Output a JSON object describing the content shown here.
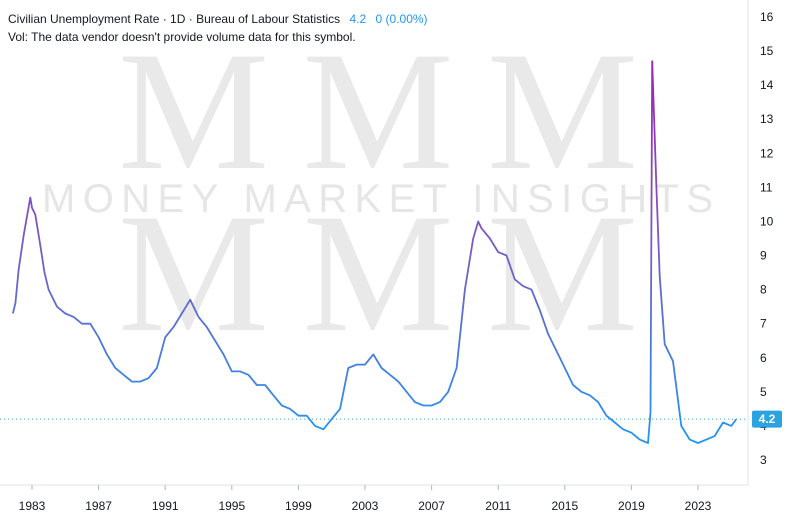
{
  "header": {
    "title": "Civilian Unemployment Rate · 1D · Bureau of Labour Statistics",
    "last_value": "4.2",
    "change": "0 (0.00%)",
    "volume_note": "Vol: The data vendor doesn't provide volume data for this symbol."
  },
  "watermark": {
    "letters": "MMM",
    "text": "MONEY MARKET INSIGHTS"
  },
  "price_label": "4.2",
  "colors": {
    "line_start": "#2196f3",
    "line_mid": "#7e57c2",
    "line_peak": "#9c27b0",
    "label_bg": "#2ba3e0",
    "dotted": "#2ba3e0"
  },
  "chart_data": {
    "type": "line",
    "title": "Civilian Unemployment Rate · 1D · Bureau of Labour Statistics",
    "xlabel": "",
    "ylabel": "",
    "xlim": [
      1981.8,
      2025.6
    ],
    "ylim": [
      2.8,
      16.2
    ],
    "x_ticks": [
      "1983",
      "1987",
      "1991",
      "1995",
      "1999",
      "2003",
      "2007",
      "2011",
      "2015",
      "2019",
      "2023"
    ],
    "y_ticks": [
      "16",
      "15",
      "14",
      "13",
      "12",
      "11",
      "10",
      "9",
      "8",
      "7",
      "6",
      "5",
      "4",
      "3"
    ],
    "series": [
      {
        "name": "Civilian Unemployment Rate",
        "x": [
          1981.85,
          1982.0,
          1982.2,
          1982.5,
          1982.9,
          1983.0,
          1983.2,
          1983.5,
          1983.75,
          1984.0,
          1984.5,
          1985.0,
          1985.5,
          1986.0,
          1986.5,
          1987.0,
          1987.5,
          1988.0,
          1988.5,
          1989.0,
          1989.5,
          1990.0,
          1990.5,
          1991.0,
          1991.5,
          1992.0,
          1992.5,
          1993.0,
          1993.5,
          1994.0,
          1994.5,
          1995.0,
          1995.5,
          1996.0,
          1996.5,
          1997.0,
          1997.5,
          1998.0,
          1998.5,
          1999.0,
          1999.5,
          2000.0,
          2000.5,
          2001.0,
          2001.5,
          2002.0,
          2002.5,
          2003.0,
          2003.5,
          2004.0,
          2004.5,
          2005.0,
          2005.5,
          2006.0,
          2006.5,
          2007.0,
          2007.5,
          2008.0,
          2008.5,
          2009.0,
          2009.5,
          2009.8,
          2010.0,
          2010.5,
          2011.0,
          2011.5,
          2012.0,
          2012.5,
          2013.0,
          2013.5,
          2014.0,
          2014.5,
          2015.0,
          2015.5,
          2016.0,
          2016.5,
          2017.0,
          2017.5,
          2018.0,
          2018.5,
          2019.0,
          2019.5,
          2020.0,
          2020.15,
          2020.25,
          2020.35,
          2020.5,
          2020.7,
          2021.0,
          2021.5,
          2022.0,
          2022.5,
          2023.0,
          2023.5,
          2024.0,
          2024.5,
          2025.0,
          2025.3
        ],
        "values": [
          7.3,
          7.6,
          8.6,
          9.6,
          10.7,
          10.4,
          10.2,
          9.3,
          8.5,
          8.0,
          7.5,
          7.3,
          7.2,
          7.0,
          7.0,
          6.6,
          6.1,
          5.7,
          5.5,
          5.3,
          5.3,
          5.4,
          5.7,
          6.6,
          6.9,
          7.3,
          7.7,
          7.2,
          6.9,
          6.5,
          6.1,
          5.6,
          5.6,
          5.5,
          5.2,
          5.2,
          4.9,
          4.6,
          4.5,
          4.3,
          4.3,
          4.0,
          3.9,
          4.2,
          4.5,
          5.7,
          5.8,
          5.8,
          6.1,
          5.7,
          5.5,
          5.3,
          5.0,
          4.7,
          4.6,
          4.6,
          4.7,
          5.0,
          5.7,
          8.0,
          9.5,
          10.0,
          9.8,
          9.5,
          9.1,
          9.0,
          8.3,
          8.1,
          8.0,
          7.4,
          6.7,
          6.2,
          5.7,
          5.2,
          5.0,
          4.9,
          4.7,
          4.3,
          4.1,
          3.9,
          3.8,
          3.6,
          3.5,
          4.4,
          14.7,
          13.2,
          11.0,
          8.4,
          6.4,
          5.9,
          4.0,
          3.6,
          3.5,
          3.6,
          3.7,
          4.1,
          4.0,
          4.2
        ]
      }
    ]
  }
}
